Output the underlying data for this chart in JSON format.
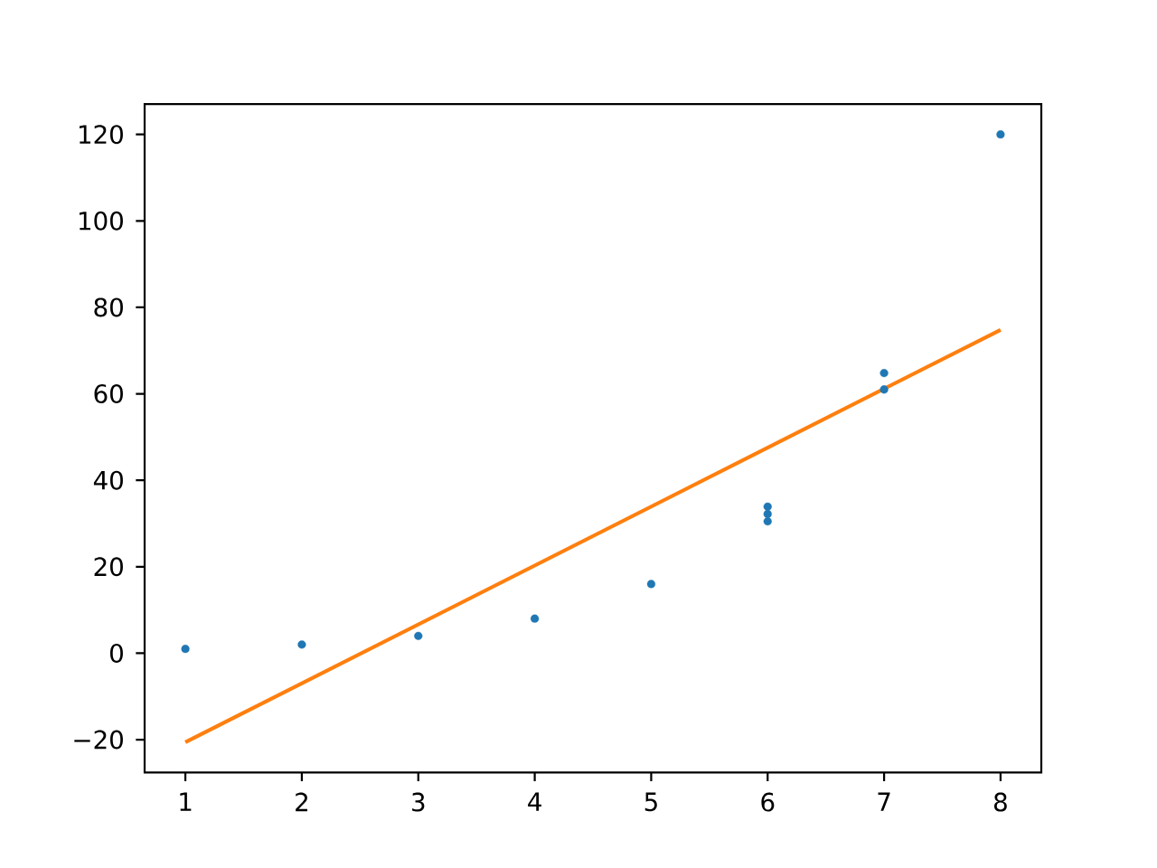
{
  "chart_data": {
    "type": "scatter",
    "series": [
      {
        "color": "#1f77b4",
        "marker": "circle",
        "x": [
          1,
          2,
          3,
          4,
          5,
          6,
          6,
          6,
          7,
          7,
          8
        ],
        "values": [
          1,
          2,
          4,
          8,
          16,
          30.5,
          32.2,
          33.9,
          61,
          64.8,
          120
        ]
      },
      {
        "type": "line",
        "color": "#ff7f0e",
        "marker": "none",
        "line_style": "solid",
        "x": [
          1,
          8
        ],
        "values": [
          -20.6,
          74.8
        ]
      }
    ],
    "xlim": [
      0.65,
      8.35
    ],
    "ylim": [
      -27.6,
      127.0
    ],
    "xticks": [
      1,
      2,
      3,
      4,
      5,
      6,
      7,
      8
    ],
    "yticks": [
      {
        "value": -20,
        "label": "−20"
      },
      0,
      20,
      40,
      60,
      80,
      100,
      120
    ]
  }
}
